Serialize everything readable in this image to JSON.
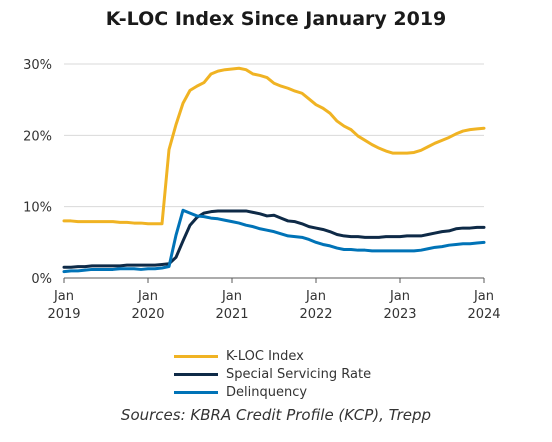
{
  "chart_data": {
    "type": "line",
    "title": "K-LOC Index Since January 2019",
    "xlabel": "",
    "ylabel": "",
    "x_start": "2019-01",
    "x_end": "2024-01",
    "xlim": [
      "2019-01",
      "2024-01"
    ],
    "x_ticks": [
      {
        "line1": "Jan",
        "line2": "2019"
      },
      {
        "line1": "Jan",
        "line2": "2020"
      },
      {
        "line1": "Jan",
        "line2": "2021"
      },
      {
        "line1": "Jan",
        "line2": "2022"
      },
      {
        "line1": "Jan",
        "line2": "2023"
      },
      {
        "line1": "Jan",
        "line2": "2024"
      }
    ],
    "ylim": [
      0,
      30
    ],
    "y_ticks": [
      "0%",
      "10%",
      "20%",
      "30%"
    ],
    "grid": "horizontal",
    "legend_position": "bottom",
    "series": [
      {
        "name": "K-LOC Index",
        "color": "#F0B323",
        "values": [
          8.0,
          8.0,
          7.9,
          7.9,
          7.9,
          7.9,
          7.9,
          7.9,
          7.8,
          7.8,
          7.7,
          7.7,
          7.6,
          7.6,
          7.6,
          18.0,
          21.5,
          24.5,
          26.3,
          26.9,
          27.4,
          28.6,
          29.0,
          29.2,
          29.3,
          29.4,
          29.2,
          28.6,
          28.4,
          28.1,
          27.3,
          26.9,
          26.6,
          26.2,
          25.9,
          25.1,
          24.3,
          23.8,
          23.1,
          22.0,
          21.3,
          20.8,
          19.9,
          19.3,
          18.7,
          18.2,
          17.8,
          17.5,
          17.5,
          17.5,
          17.6,
          17.9,
          18.4,
          18.9,
          19.3,
          19.7,
          20.2,
          20.6,
          20.8,
          20.9,
          21.0
        ]
      },
      {
        "name": "Special Servicing Rate",
        "color": "#0E2A47",
        "values": [
          1.5,
          1.5,
          1.6,
          1.6,
          1.7,
          1.7,
          1.7,
          1.7,
          1.7,
          1.8,
          1.8,
          1.8,
          1.8,
          1.8,
          1.9,
          2.0,
          2.9,
          5.2,
          7.4,
          8.5,
          9.1,
          9.3,
          9.4,
          9.4,
          9.4,
          9.4,
          9.4,
          9.2,
          9.0,
          8.7,
          8.8,
          8.4,
          8.0,
          7.9,
          7.6,
          7.2,
          7.0,
          6.8,
          6.5,
          6.1,
          5.9,
          5.8,
          5.8,
          5.7,
          5.7,
          5.7,
          5.8,
          5.8,
          5.8,
          5.9,
          5.9,
          5.9,
          6.1,
          6.3,
          6.5,
          6.6,
          6.9,
          7.0,
          7.0,
          7.1,
          7.1
        ]
      },
      {
        "name": "Delinquency",
        "color": "#0073B7",
        "values": [
          0.9,
          1.0,
          1.0,
          1.1,
          1.2,
          1.2,
          1.2,
          1.2,
          1.3,
          1.3,
          1.3,
          1.2,
          1.3,
          1.3,
          1.4,
          1.6,
          6.0,
          9.5,
          9.1,
          8.7,
          8.6,
          8.4,
          8.3,
          8.1,
          7.9,
          7.7,
          7.4,
          7.2,
          6.9,
          6.7,
          6.5,
          6.2,
          5.9,
          5.8,
          5.7,
          5.4,
          5.0,
          4.7,
          4.5,
          4.2,
          4.0,
          4.0,
          3.9,
          3.9,
          3.8,
          3.8,
          3.8,
          3.8,
          3.8,
          3.8,
          3.8,
          3.9,
          4.1,
          4.3,
          4.4,
          4.6,
          4.7,
          4.8,
          4.8,
          4.9,
          5.0
        ]
      }
    ]
  },
  "source_note": "Sources: KBRA Credit Profile (KCP), Trepp"
}
